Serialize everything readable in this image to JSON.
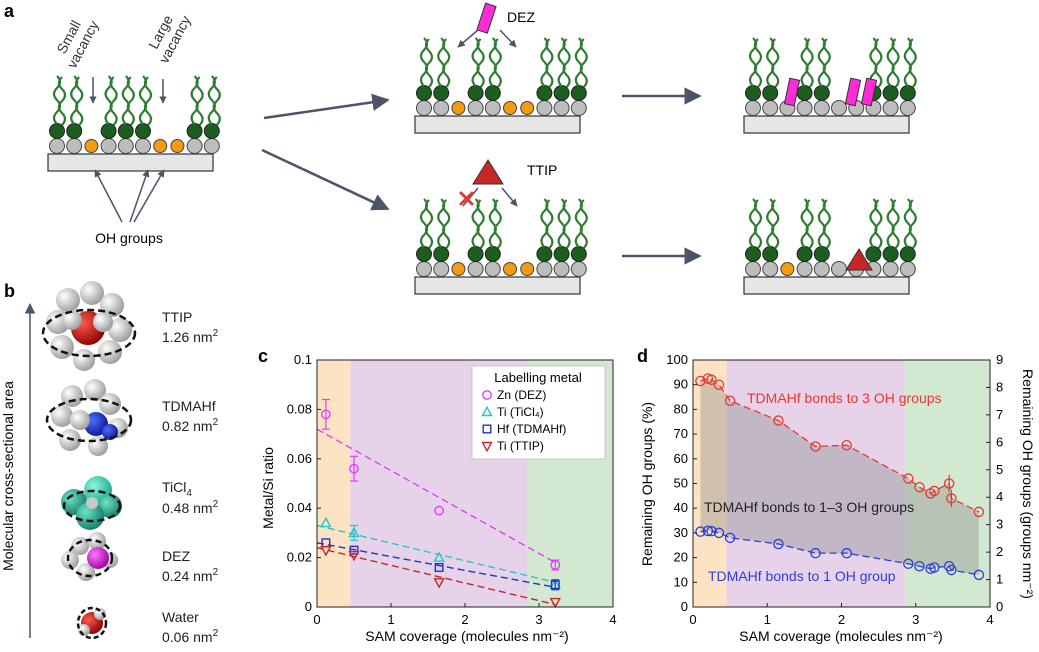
{
  "panels": {
    "a": "a",
    "b": "b",
    "c": "c",
    "d": "d"
  },
  "panel_a": {
    "small_vacancy": [
      "Small",
      "vacancy"
    ],
    "large_vacancy": [
      "Large",
      "vacancy"
    ],
    "oh_groups": "OH groups",
    "dez": "DEZ",
    "ttip": "TTIP"
  },
  "panel_b": {
    "axis_label": "Molecular cross-sectional area",
    "molecules": [
      {
        "name": "TTIP",
        "area": "1.26 nm",
        "sup": "2"
      },
      {
        "name": "TDMAHf",
        "area": "0.82 nm",
        "sup": "2"
      },
      {
        "name": "TiCl",
        "sub": "4",
        "area": "0.48 nm",
        "sup": "2"
      },
      {
        "name": "DEZ",
        "area": "0.24 nm",
        "sup": "2"
      },
      {
        "name": "Water",
        "area": "0.06 nm",
        "sup": "2"
      }
    ]
  },
  "colors": {
    "chain": "#2e7d32",
    "head": "#1b5e20",
    "si": "#bdbdbd",
    "oh": "#f39c12",
    "dez": "#ff2bd6",
    "ttip": "#c62828",
    "arrow": "#4a5568",
    "zone_orange": "#fde3c4",
    "zone_purple": "#e6d3ea",
    "zone_green": "#d3e8d0",
    "zn": "#e040fb",
    "ti_cl": "#26c6c6",
    "hf": "#2233cc",
    "ti_ttip": "#c62828",
    "d_red": "#e53935",
    "d_blue": "#2f3fd6",
    "d_fill": "#8a8a8a"
  },
  "chart_data": [
    {
      "type": "scatter",
      "panel": "c",
      "xlabel": "SAM coverage (molecules nm⁻²)",
      "ylabel": "Metal/Si ratio",
      "xlim": [
        0,
        4
      ],
      "ylim": [
        0,
        0.1
      ],
      "xticks": [
        "0",
        "1",
        "2",
        "3",
        "4"
      ],
      "yticks": [
        "0",
        "0.02",
        "0.04",
        "0.06",
        "0.08",
        "0.1"
      ],
      "legend_title": "Labelling metal",
      "legend_position": "top-right",
      "series": [
        {
          "name": "Zn (DEZ)",
          "marker": "circle",
          "x": [
            0.12,
            0.5,
            1.65,
            3.22
          ],
          "y": [
            0.078,
            0.056,
            0.039,
            0.017
          ],
          "err": [
            0.006,
            0.005,
            0,
            0.002
          ],
          "fit": [
            [
              0,
              0.072
            ],
            [
              3.22,
              0.018
            ]
          ]
        },
        {
          "name": "Ti (TiCl₄)",
          "marker": "triangle-up",
          "x": [
            0.12,
            0.5,
            1.65,
            3.22
          ],
          "y": [
            0.034,
            0.03,
            0.02,
            0.009
          ],
          "err": [
            0,
            0.003,
            0,
            0
          ],
          "fit": [
            [
              0,
              0.033
            ],
            [
              3.22,
              0.01
            ]
          ]
        },
        {
          "name": "Hf (TDMAHf)",
          "marker": "square",
          "x": [
            0.12,
            0.5,
            1.65,
            3.22
          ],
          "y": [
            0.026,
            0.023,
            0.016,
            0.009
          ],
          "err": [
            0,
            0,
            0,
            0.002
          ],
          "fit": [
            [
              0,
              0.026
            ],
            [
              3.22,
              0.008
            ]
          ]
        },
        {
          "name": "Ti (TTIP)",
          "marker": "triangle-down",
          "x": [
            0.12,
            0.5,
            1.65,
            3.22
          ],
          "y": [
            0.023,
            0.021,
            0.01,
            0.002
          ],
          "err": [
            0,
            0,
            0,
            0
          ],
          "fit": [
            [
              0,
              0.024
            ],
            [
              3.22,
              0.001
            ]
          ]
        }
      ],
      "zones": [
        [
          0,
          0.45,
          "orange"
        ],
        [
          0.45,
          2.85,
          "purple"
        ],
        [
          2.85,
          4,
          "green"
        ]
      ]
    },
    {
      "type": "line",
      "panel": "d",
      "xlabel": "SAM coverage (molecules nm⁻²)",
      "ylabel": "Remaining OH groups (%)",
      "y2label": "Remaining OH groups (groups nm⁻²)",
      "xlim": [
        0,
        4
      ],
      "ylim": [
        0,
        100
      ],
      "y2lim": [
        0,
        9
      ],
      "xticks": [
        "0",
        "1",
        "2",
        "3",
        "4"
      ],
      "yticks": [
        "0",
        "10",
        "20",
        "30",
        "40",
        "50",
        "60",
        "70",
        "80",
        "90",
        "100"
      ],
      "y2ticks": [
        "0",
        "1",
        "2",
        "3",
        "4",
        "5",
        "6",
        "7",
        "8",
        "9"
      ],
      "series": [
        {
          "name": "TDMAHf bonds to 3 OH groups",
          "x": [
            0.1,
            0.2,
            0.25,
            0.35,
            0.5,
            1.15,
            1.65,
            2.07,
            2.9,
            3.05,
            3.2,
            3.25,
            3.45,
            3.48,
            3.85
          ],
          "y": [
            91.5,
            92.5,
            92,
            90,
            83.5,
            75.5,
            65,
            65.5,
            52,
            48.5,
            46,
            47,
            50,
            44,
            38.5
          ]
        },
        {
          "name": "TDMAHf bonds to 1 OH group",
          "x": [
            0.1,
            0.2,
            0.25,
            0.35,
            0.5,
            1.15,
            1.65,
            2.07,
            2.9,
            3.05,
            3.2,
            3.25,
            3.45,
            3.48,
            3.85
          ],
          "y": [
            30.5,
            30.8,
            30.7,
            30,
            28,
            25.5,
            21.8,
            21.8,
            17.5,
            16.5,
            15.5,
            16,
            16.5,
            15,
            13
          ]
        }
      ],
      "region_label": "TDMAHf bonds to 1–3 OH groups",
      "zones": [
        [
          0,
          0.45,
          "orange"
        ],
        [
          0.45,
          2.85,
          "purple"
        ],
        [
          2.85,
          4,
          "green"
        ]
      ]
    }
  ]
}
